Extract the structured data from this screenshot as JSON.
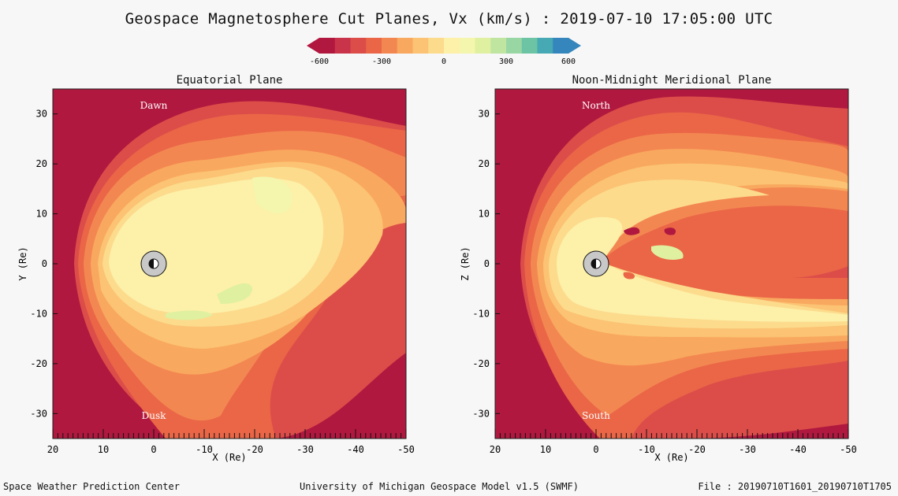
{
  "header": {
    "title": "Geospace Magnetosphere Cut Planes, Vx (km/s) : 2019-07-10 17:05:00 UTC"
  },
  "colorbar": {
    "ticks": [
      "-600",
      "-300",
      "0",
      "300",
      "600"
    ],
    "colors": [
      "#b1183f",
      "#c9344a",
      "#dc4d49",
      "#ea6647",
      "#f38751",
      "#f9a85f",
      "#fbc373",
      "#fcdb8d",
      "#fdf0a8",
      "#f4f6ad",
      "#dff0a0",
      "#bfe5a0",
      "#98d6a4",
      "#6cc4a4",
      "#46a9b3",
      "#3586bd"
    ]
  },
  "panels": [
    {
      "title": "Equatorial Plane",
      "ylabel": "Y (Re)",
      "xlabel": "X (Re)",
      "top_label": "Dawn",
      "bottom_label": "Dusk"
    },
    {
      "title": "Noon-Midnight Meridional Plane",
      "ylabel": "Z (Re)",
      "xlabel": "X (Re)",
      "top_label": "North",
      "bottom_label": "South"
    }
  ],
  "footer": {
    "left": "Space Weather Prediction Center",
    "center": "University of Michigan Geospace Model v1.5 (SWMF)",
    "right": "File : 20190710T1601_20190710T1705"
  },
  "chart_data": [
    {
      "type": "heatmap",
      "title": "Equatorial Plane",
      "xlabel": "X (Re)",
      "ylabel": "Y (Re)",
      "xlim": [
        20,
        -50
      ],
      "ylim": [
        -35,
        35
      ],
      "x_ticks": [
        "20",
        "10",
        "0",
        "-10",
        "-20",
        "-30",
        "-40",
        "-50"
      ],
      "y_ticks": [
        "30",
        "20",
        "10",
        "0",
        "-10",
        "-20",
        "-30"
      ],
      "colorbar_label": "Vx (km/s)",
      "colorbar_range": [
        -600,
        600
      ]
    },
    {
      "type": "heatmap",
      "title": "Noon-Midnight Meridional Plane",
      "xlabel": "X (Re)",
      "ylabel": "Z (Re)",
      "xlim": [
        20,
        -50
      ],
      "ylim": [
        -35,
        35
      ],
      "x_ticks": [
        "20",
        "10",
        "0",
        "-10",
        "-20",
        "-30",
        "-40",
        "-50"
      ],
      "y_ticks": [
        "30",
        "20",
        "10",
        "0",
        "-10",
        "-20",
        "-30"
      ],
      "colorbar_label": "Vx (km/s)",
      "colorbar_range": [
        -600,
        600
      ]
    }
  ]
}
